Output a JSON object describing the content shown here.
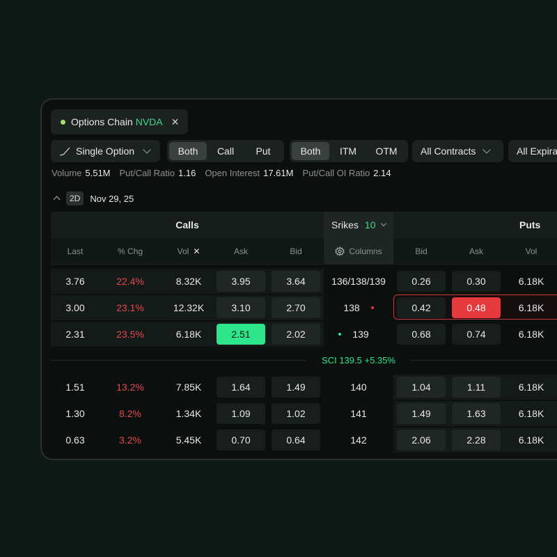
{
  "tab": {
    "title": "Options Chain",
    "symbol": "NVDA",
    "close": "✕"
  },
  "toolbar": {
    "strategy": "Single Option",
    "type_segments": [
      "Both",
      "Call",
      "Put"
    ],
    "moneyness_segments": [
      "Both",
      "ITM",
      "OTM"
    ],
    "contracts": "All Contracts",
    "expirations": "All Expira"
  },
  "stats": {
    "volume_label": "Volume",
    "volume": "5.51M",
    "pcr_label": "Put/Call Ratio",
    "pcr": "1.16",
    "oi_label": "Open Interest",
    "oi": "17.61M",
    "pcoi_label": "Put/Call OI Ratio",
    "pcoi": "2.14"
  },
  "expiry": {
    "badge": "2D",
    "date": "Nov 29, 25"
  },
  "headers": {
    "calls": "Calls",
    "strikes": "Srikes",
    "strikes_count": "10",
    "puts": "Puts",
    "last": "Last",
    "chg": "% Chg",
    "vol": "Vol",
    "ask": "Ask",
    "bid": "Bid",
    "columns": "Columns",
    "put_bid": "Bid",
    "put_ask": "Ask",
    "put_vol": "Vol"
  },
  "rows_itm": [
    {
      "last": "3.76",
      "chg": "22.4%",
      "vol": "8.32K",
      "ask": "3.95",
      "bid": "3.64",
      "strike": "136/138/139",
      "pbid": "0.26",
      "pask": "0.30",
      "pvol": "6.18K"
    },
    {
      "last": "3.00",
      "chg": "23.1%",
      "vol": "12.32K",
      "ask": "3.10",
      "bid": "2.70",
      "strike": "138",
      "pbid": "0.42",
      "pask": "0.48",
      "pvol": "6.18K"
    },
    {
      "last": "2.31",
      "chg": "23.5%",
      "vol": "6.18K",
      "ask": "2.51",
      "bid": "2.02",
      "strike": "139",
      "pbid": "0.68",
      "pask": "0.74",
      "pvol": "6.18K"
    }
  ],
  "underlying": "SCI 139.5 +5.35%",
  "rows_otm": [
    {
      "last": "1.51",
      "chg": "13.2%",
      "vol": "7.85K",
      "ask": "1.64",
      "bid": "1.49",
      "strike": "140",
      "pbid": "1.04",
      "pask": "1.11",
      "pvol": "6.18K"
    },
    {
      "last": "1.30",
      "chg": "8.2%",
      "vol": "1.34K",
      "ask": "1.09",
      "bid": "1.02",
      "strike": "141",
      "pbid": "1.49",
      "pask": "1.63",
      "pvol": "6.18K"
    },
    {
      "last": "0.63",
      "chg": "3.2%",
      "vol": "5.45K",
      "ask": "0.70",
      "bid": "0.64",
      "strike": "142",
      "pbid": "2.06",
      "pask": "2.28",
      "pvol": "6.18K"
    }
  ],
  "colors": {
    "accent_green": "#2ee58c",
    "negative_red": "#e5484d",
    "selected_red": "#e5393c"
  }
}
